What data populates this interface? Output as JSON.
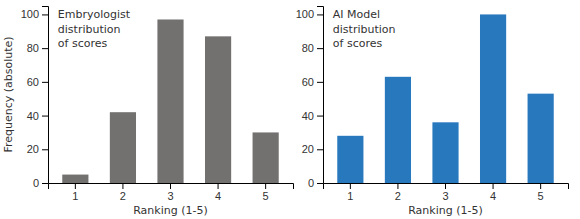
{
  "chart_data": [
    {
      "type": "bar",
      "title": "Embryologist\ndistribution\nof scores",
      "categories": [
        1,
        2,
        3,
        4,
        5
      ],
      "values": [
        5,
        42,
        97,
        87,
        30
      ],
      "color": "#737070",
      "xlabel": "Ranking (1-5)",
      "ylabel": "Frequency (absolute)",
      "ylim": [
        0,
        105
      ],
      "yticks": [
        0,
        20,
        40,
        60,
        80,
        100
      ],
      "grid": false
    },
    {
      "type": "bar",
      "title": "AI Model\ndistribution\nof scores",
      "categories": [
        1,
        2,
        3,
        4,
        5
      ],
      "values": [
        28,
        63,
        36,
        100,
        53
      ],
      "color": "#2878be",
      "xlabel": "Ranking (1-5)",
      "ylim": [
        0,
        105
      ],
      "yticks": [
        0,
        20,
        40,
        60,
        80,
        100
      ],
      "grid": false
    }
  ]
}
